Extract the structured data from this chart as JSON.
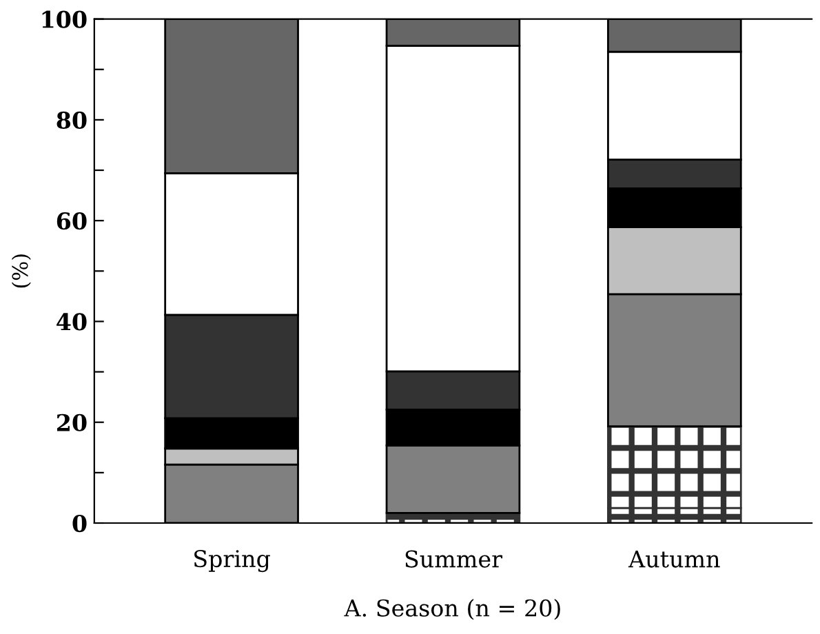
{
  "chart_data": {
    "type": "bar",
    "stacked": true,
    "xlabel": "A. Season (n = 20)",
    "ylabel": "(%)",
    "categories": [
      "Spring",
      "Summer",
      "Autumn"
    ],
    "series": [
      {
        "color": "#333333",
        "values": [
          0,
          2,
          3
        ]
      },
      {
        "color": "#333333",
        "values": [
          0,
          0,
          16.2
        ]
      },
      {
        "color": "#808080",
        "values": [
          11.6,
          13.4,
          26.2
        ]
      },
      {
        "color": "#bfbfbf",
        "values": [
          3.2,
          0,
          13.3
        ]
      },
      {
        "color": "#000000",
        "values": [
          6,
          7.1,
          7.7
        ]
      },
      {
        "color": "#333333",
        "values": [
          20.5,
          7.6,
          5.7
        ]
      },
      {
        "color": "#ffffff",
        "values": [
          28.1,
          64.6,
          21.4
        ]
      },
      {
        "color": "#666666",
        "values": [
          30.6,
          5.3,
          6.5
        ]
      }
    ],
    "ylim": [
      0,
      100
    ],
    "yticks": [
      0,
      {
        "value": 10,
        "label": null
      },
      20,
      {
        "value": 30,
        "label": null
      },
      40,
      {
        "value": 50,
        "label": null
      },
      60,
      {
        "value": 70,
        "label": null
      },
      80,
      {
        "value": 90,
        "label": null
      },
      100
    ],
    "grid": false,
    "legend": false
  }
}
